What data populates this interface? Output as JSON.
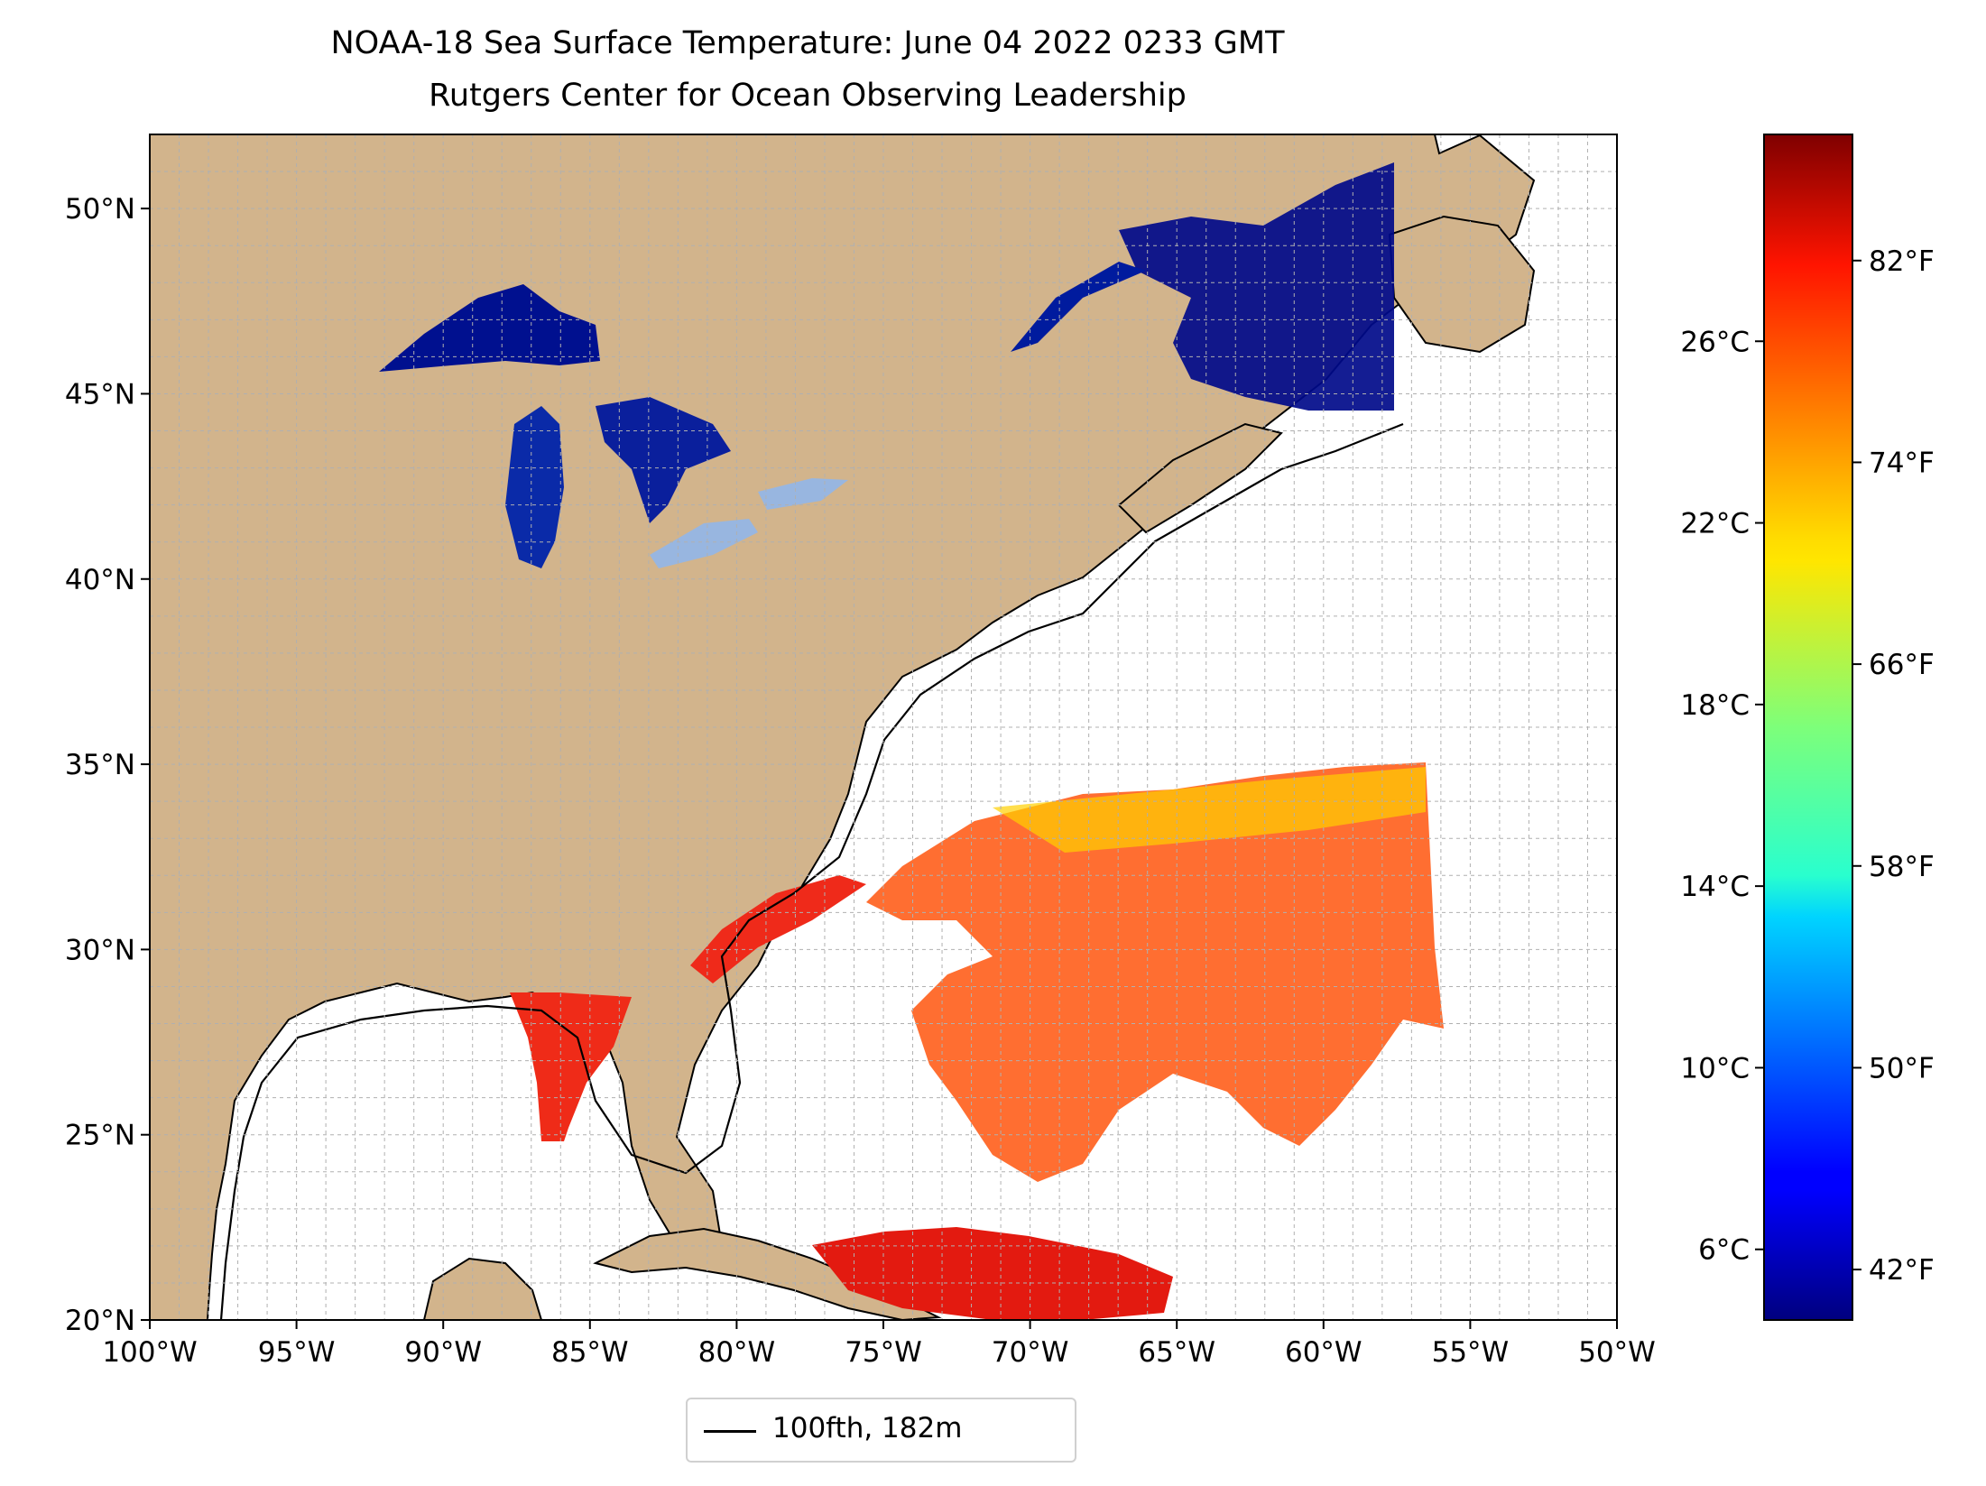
{
  "title_line1": "NOAA-18 Sea Surface Temperature: June 04 2022 0233 GMT",
  "title_line2": "Rutgers Center for Ocean Observing Leadership",
  "map": {
    "lon_range": [
      -100,
      -50
    ],
    "lat_range": [
      20,
      52
    ],
    "lon_ticks": [
      "100°W",
      "95°W",
      "90°W",
      "85°W",
      "80°W",
      "75°W",
      "70°W",
      "65°W",
      "60°W",
      "55°W",
      "50°W"
    ],
    "lat_ticks": [
      "20°N",
      "25°N",
      "30°N",
      "35°N",
      "40°N",
      "45°N",
      "50°N"
    ],
    "colors": {
      "land": "#d2b48c",
      "lakes": "#98b6e0",
      "ocean": "#ffffff",
      "gridlines": "#b0b0b0",
      "isobath": "#000000"
    }
  },
  "colorbar": {
    "colormap": "jet",
    "range_f": [
      40,
      87
    ],
    "celsius_ticks": [
      "6°C",
      "10°C",
      "14°C",
      "18°C",
      "22°C",
      "26°C"
    ],
    "celsius_values": [
      6,
      10,
      14,
      18,
      22,
      26
    ],
    "fahrenheit_ticks": [
      "42°F",
      "50°F",
      "58°F",
      "66°F",
      "74°F",
      "82°F"
    ],
    "fahrenheit_values": [
      42,
      50,
      58,
      66,
      74,
      82
    ]
  },
  "legend": {
    "label": "100fth, 182m"
  }
}
